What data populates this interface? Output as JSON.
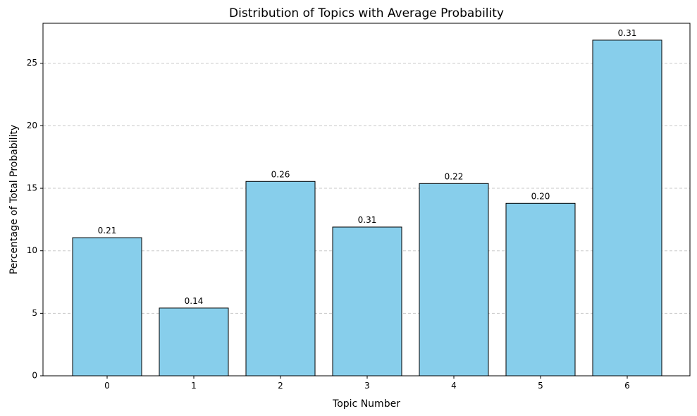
{
  "chart_data": {
    "type": "bar",
    "title": "Distribution of Topics with Average Probability",
    "xlabel": "Topic Number",
    "ylabel": "Percentage of Total Probability",
    "categories": [
      "0",
      "1",
      "2",
      "3",
      "4",
      "5",
      "6"
    ],
    "values": [
      11.05,
      5.42,
      15.55,
      11.9,
      15.38,
      13.8,
      26.85
    ],
    "data_labels": [
      "0.21",
      "0.14",
      "0.26",
      "0.31",
      "0.22",
      "0.20",
      "0.31"
    ],
    "y_ticks": [
      0,
      5,
      10,
      15,
      20,
      25
    ],
    "ylim": [
      0,
      28.2
    ],
    "grid": "y-dashed",
    "colors": {
      "bar_fill": "#87CEEB",
      "bar_edge": "#000000",
      "grid": "#c8c8c8",
      "axis": "#000000"
    }
  }
}
